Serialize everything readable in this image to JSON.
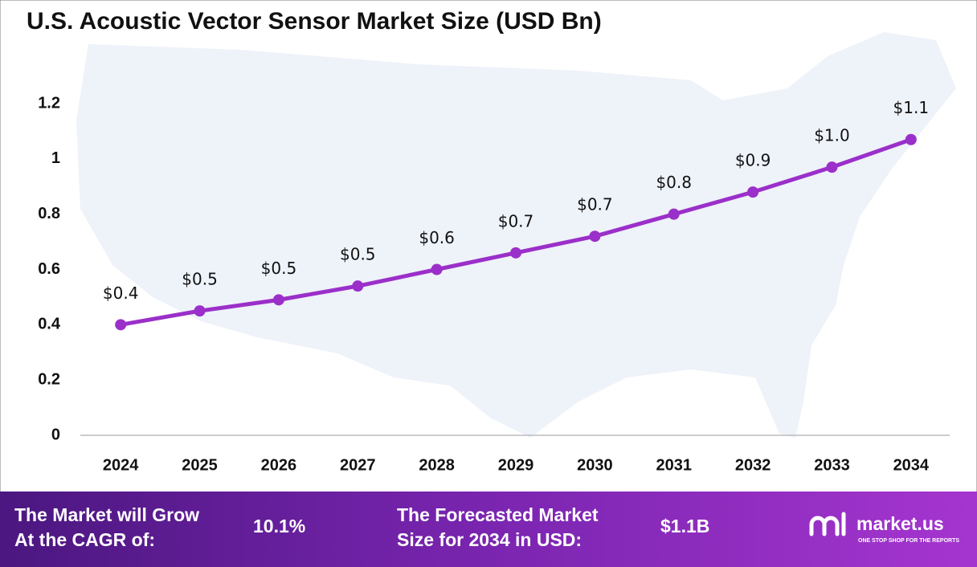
{
  "chart_data": {
    "type": "line",
    "title": "U.S. Acoustic Vector Sensor Market Size (USD Bn)",
    "categories": [
      "2024",
      "2025",
      "2026",
      "2027",
      "2028",
      "2029",
      "2030",
      "2031",
      "2032",
      "2033",
      "2034"
    ],
    "series": [
      {
        "color": "#9b2fc9",
        "values": [
          0.4,
          0.45,
          0.49,
          0.54,
          0.6,
          0.66,
          0.72,
          0.8,
          0.88,
          0.97,
          1.07
        ],
        "value_labels": [
          "$0.4",
          "$0.5",
          "$0.5",
          "$0.5",
          "$0.6",
          "$0.7",
          "$0.7",
          "$0.8",
          "$0.9",
          "$1.0",
          "$1.1"
        ]
      }
    ],
    "ylim": [
      0,
      1.2
    ],
    "yticks": [
      0,
      0.2,
      0.4,
      0.6,
      0.8,
      1,
      1.2
    ],
    "grid": false
  },
  "footer": {
    "cagr_text": [
      "The Market will Grow",
      "At the CAGR of:"
    ],
    "cagr_value": "10.1%",
    "forecast_text": [
      "The Forecasted Market",
      "Size for 2034 in USD:"
    ],
    "forecast_value": "$1.1B",
    "brand": "market.us",
    "tagline": "ONE STOP SHOP FOR THE REPORTS"
  }
}
